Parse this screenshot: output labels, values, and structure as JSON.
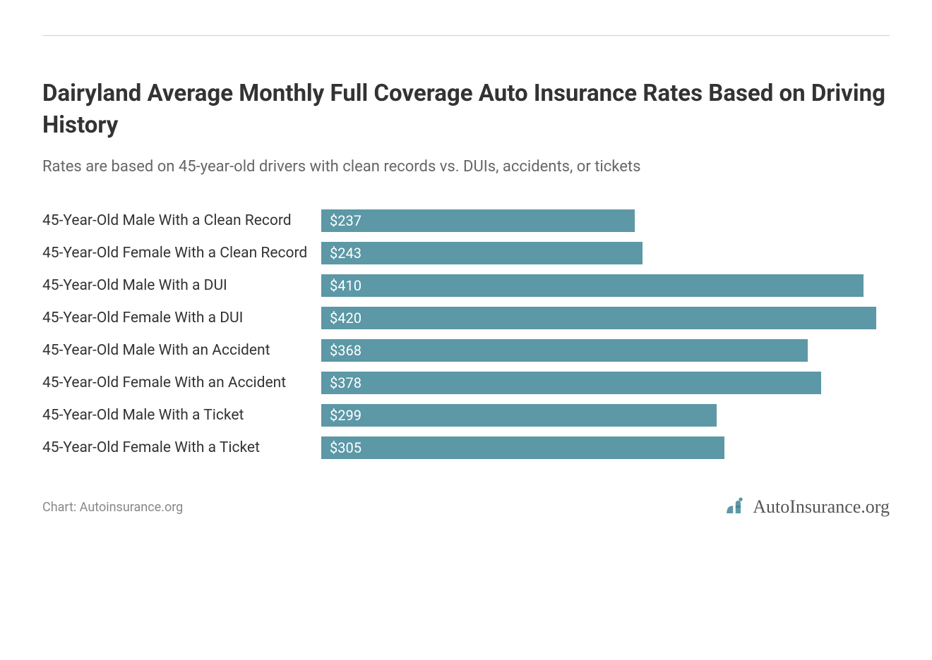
{
  "title": "Dairyland Average Monthly Full Coverage Auto Insurance Rates Based on Driving History",
  "subtitle": "Rates are based on 45-year-old drivers with clean records vs. DUIs, accidents, or tickets",
  "chart": {
    "type": "bar-horizontal",
    "bar_color": "#5c98a6",
    "value_text_color": "#ffffff",
    "label_text_color": "#333333",
    "label_fontsize": 21,
    "value_fontsize": 20,
    "title_fontsize": 33,
    "subtitle_fontsize": 22,
    "background_color": "#ffffff",
    "divider_color": "#d0d0d0",
    "max_value": 430,
    "rows": [
      {
        "label": "45-Year-Old Male With a Clean Record",
        "value": 237,
        "display": "$237"
      },
      {
        "label": "45-Year-Old Female With a Clean Record",
        "value": 243,
        "display": "$243"
      },
      {
        "label": "45-Year-Old Male With a DUI",
        "value": 410,
        "display": "$410"
      },
      {
        "label": "45-Year-Old Female With a DUI",
        "value": 420,
        "display": "$420"
      },
      {
        "label": "45-Year-Old Male With an Accident",
        "value": 368,
        "display": "$368"
      },
      {
        "label": "45-Year-Old Female With an Accident",
        "value": 378,
        "display": "$378"
      },
      {
        "label": "45-Year-Old Male With a Ticket",
        "value": 299,
        "display": "$299"
      },
      {
        "label": "45-Year-Old Female With a Ticket",
        "value": 305,
        "display": "$305"
      }
    ]
  },
  "attribution": "Chart: Autoinsurance.org",
  "logo": {
    "text": "AutoInsurance.org",
    "icon_color_primary": "#5c98a6",
    "icon_color_accent": "#4a8090",
    "text_color": "#555555"
  }
}
